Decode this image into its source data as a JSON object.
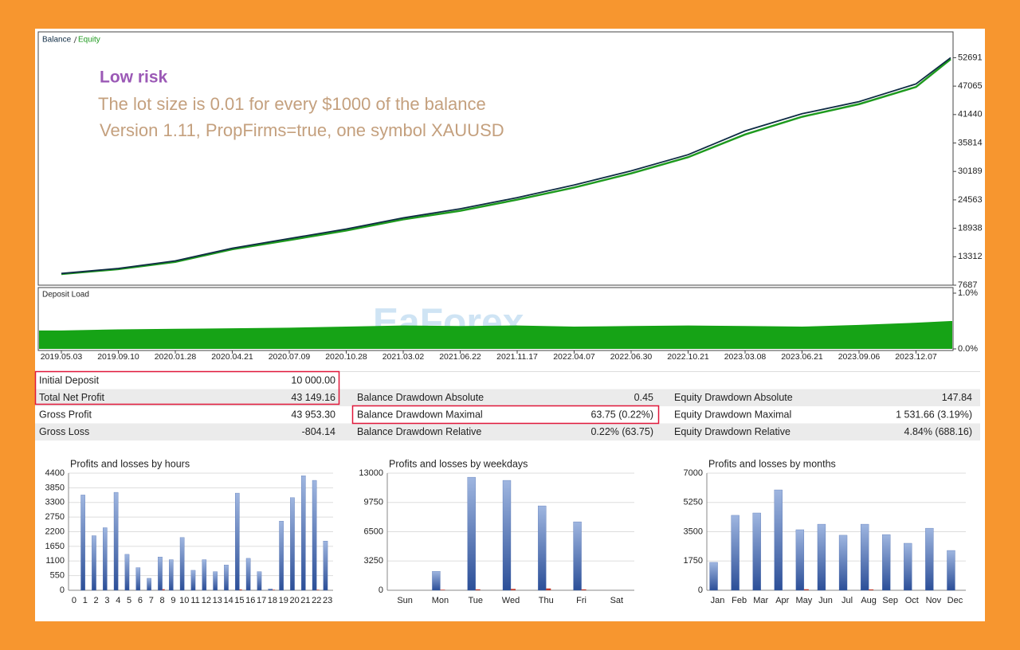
{
  "chart_data": [
    {
      "type": "line",
      "x": [
        "2019.05.03",
        "2019.09.10",
        "2020.01.28",
        "2020.04.21",
        "2020.07.09",
        "2020.10.28",
        "2021.03.02",
        "2021.06.22",
        "2021.11.17",
        "2022.04.07",
        "2022.06.30",
        "2022.10.21",
        "2023.03.08",
        "2023.06.21",
        "2023.09.06",
        "2023.12.07",
        null
      ],
      "series": [
        {
          "name": "Balance",
          "color": "#0e2b44",
          "values": [
            10000,
            11000,
            12500,
            15000,
            16900,
            18800,
            21000,
            22800,
            25000,
            27500,
            30300,
            33500,
            38200,
            41600,
            44000,
            47500,
            52691
          ]
        },
        {
          "name": "Equity",
          "color": "#1e9a1e",
          "values": [
            9900,
            10850,
            12300,
            14800,
            16600,
            18500,
            20700,
            22400,
            24600,
            27000,
            29800,
            33000,
            37500,
            41000,
            43500,
            46900,
            52400
          ]
        }
      ],
      "ylim": [
        7687,
        57800
      ],
      "yticks": [
        7687,
        13312,
        18938,
        24563,
        30189,
        35814,
        41440,
        47065,
        52691
      ],
      "annotations": [
        "Low risk",
        "The lot size is 0.01 for every $1000 of the balance",
        "Version 1.11, PropFirms=true, one symbol XAUUSD"
      ]
    },
    {
      "type": "area",
      "title": "Deposit Load",
      "color": "#16a316",
      "values": [
        0.33,
        0.35,
        0.36,
        0.37,
        0.38,
        0.4,
        0.42,
        0.41,
        0.42,
        0.4,
        0.41,
        0.42,
        0.41,
        0.4,
        0.43,
        0.47,
        0.5
      ],
      "ylim": [
        0,
        1
      ],
      "yticks": [
        {
          "value": 0,
          "label": "0.0%"
        },
        {
          "value": 1,
          "label": "1.0%"
        }
      ]
    },
    {
      "type": "bar",
      "title": "Profits and losses by hours",
      "categories": [
        "0",
        "1",
        "2",
        "3",
        "4",
        "5",
        "6",
        "7",
        "8",
        "9",
        "10",
        "11",
        "12",
        "13",
        "14",
        "15",
        "16",
        "17",
        "18",
        "19",
        "20",
        "21",
        "22",
        "23"
      ],
      "series": [
        {
          "color": "#3f62a8",
          "values": [
            0,
            3580,
            2050,
            2350,
            3680,
            1350,
            850,
            450,
            1250,
            1150,
            1980,
            750,
            1150,
            700,
            950,
            3650,
            1200,
            700,
            50,
            2600,
            3480,
            4300,
            4130,
            1850
          ]
        },
        {
          "color": "#c0392b",
          "values": [
            0,
            0,
            0,
            0,
            0,
            0,
            0,
            0,
            40,
            0,
            0,
            0,
            0,
            0,
            0,
            30,
            0,
            0,
            20,
            0,
            0,
            0,
            20,
            0
          ]
        }
      ],
      "ylim": [
        0,
        4400
      ],
      "yticks": [
        0,
        550,
        1100,
        1650,
        2200,
        2750,
        3300,
        3850,
        4400
      ]
    },
    {
      "type": "bar",
      "title": "Profits and losses by weekdays",
      "categories": [
        "Sun",
        "Mon",
        "Tue",
        "Wed",
        "Thu",
        "Fri",
        "Sat"
      ],
      "series": [
        {
          "color": "#3f62a8",
          "values": [
            0,
            2100,
            12550,
            12200,
            9370,
            7600,
            0
          ]
        },
        {
          "color": "#c0392b",
          "values": [
            0,
            60,
            100,
            150,
            200,
            100,
            0
          ]
        }
      ],
      "ylim": [
        0,
        13000
      ],
      "yticks": [
        0,
        3250,
        6500,
        9750,
        13000
      ]
    },
    {
      "type": "bar",
      "title": "Profits and losses by months",
      "categories": [
        "Jan",
        "Feb",
        "Mar",
        "Apr",
        "May",
        "Jun",
        "Jul",
        "Aug",
        "Sep",
        "Oct",
        "Nov",
        "Dec"
      ],
      "series": [
        {
          "color": "#3f62a8",
          "values": [
            1670,
            4480,
            4620,
            6000,
            3620,
            3950,
            3290,
            3950,
            3330,
            2810,
            3710,
            2380
          ]
        },
        {
          "color": "#c0392b",
          "values": [
            0,
            0,
            0,
            0,
            60,
            0,
            0,
            50,
            0,
            0,
            0,
            0
          ]
        }
      ],
      "ylim": [
        0,
        7000
      ],
      "yticks": [
        0,
        1750,
        3500,
        5250,
        7000
      ]
    }
  ],
  "watermark": "EaForex",
  "stats": {
    "rows": [
      [
        {
          "label": "Initial Deposit",
          "value": "10 000.00"
        }
      ],
      [
        {
          "label": "Total Net Profit",
          "value": "43 149.16"
        },
        {
          "label": "Balance Drawdown Absolute",
          "value": "0.45"
        },
        {
          "label": "Equity Drawdown Absolute",
          "value": "147.84"
        }
      ],
      [
        {
          "label": "Gross Profit",
          "value": "43 953.30"
        },
        {
          "label": "Balance Drawdown Maximal",
          "value": "63.75 (0.22%)"
        },
        {
          "label": "Equity Drawdown Maximal",
          "value": "1 531.66 (3.19%)"
        }
      ],
      [
        {
          "label": "Gross Loss",
          "value": "-804.14"
        },
        {
          "label": "Balance Drawdown Relative",
          "value": "0.22% (63.75)"
        },
        {
          "label": "Equity Drawdown Relative",
          "value": "4.84% (688.16)"
        }
      ]
    ]
  }
}
